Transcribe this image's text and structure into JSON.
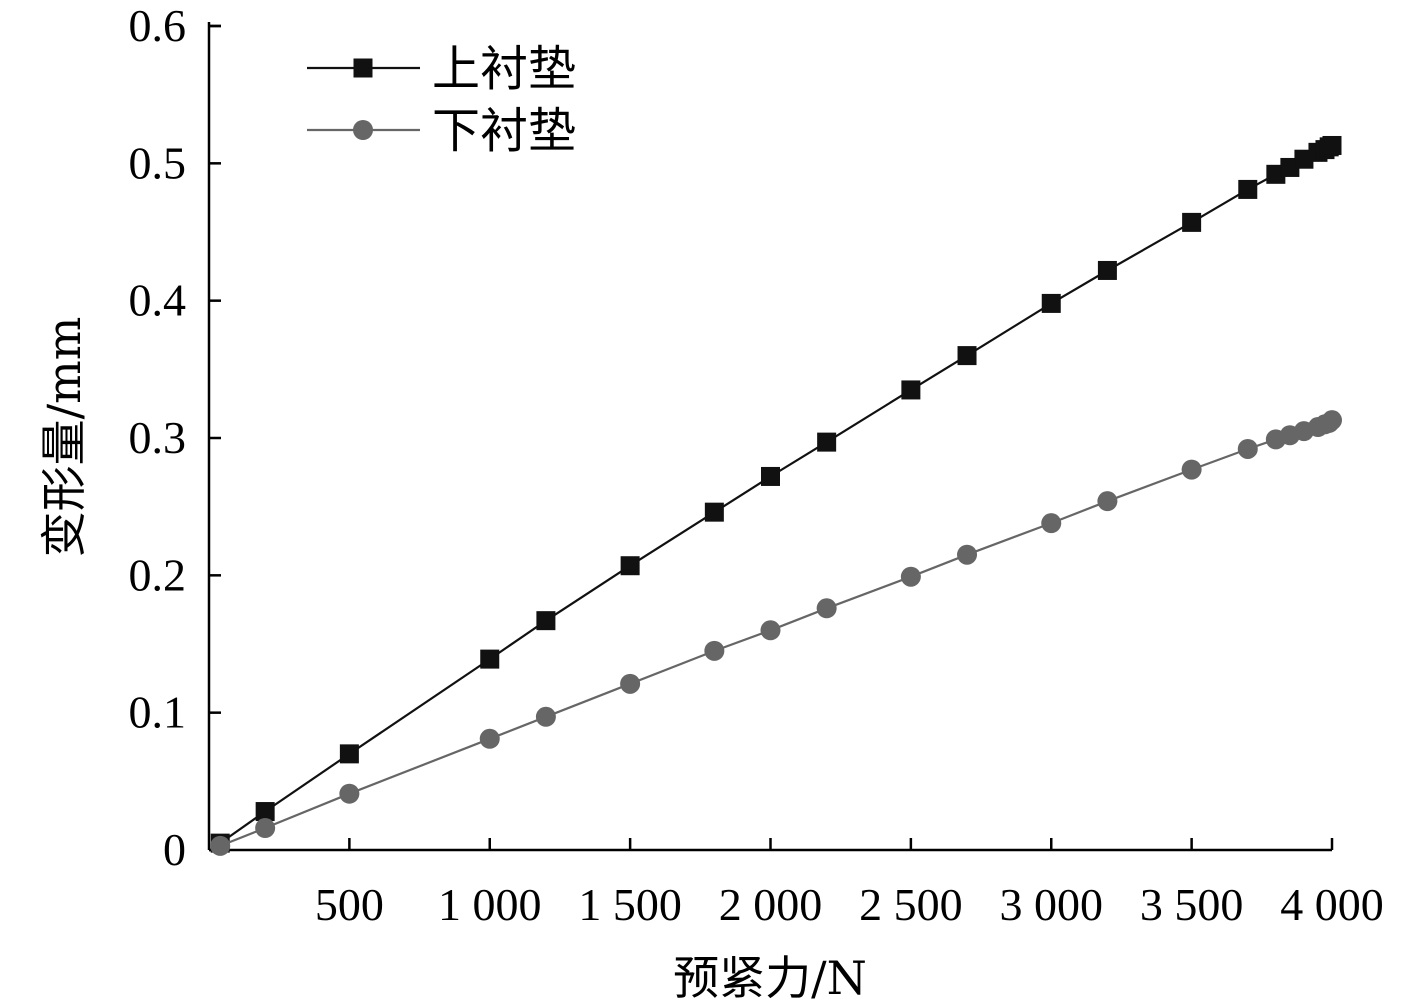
{
  "chart_data": {
    "type": "line",
    "xlabel": "预紧力/N",
    "ylabel": "变形量/mm",
    "xlim": [
      0,
      4000
    ],
    "ylim": [
      0,
      0.6
    ],
    "x_ticks": [
      500,
      1000,
      1500,
      2000,
      2500,
      3000,
      3500,
      4000
    ],
    "x_tick_labels": [
      "500",
      "1 000",
      "1 500",
      "2 000",
      "2 500",
      "3 000",
      "3 500",
      "4 000"
    ],
    "y_ticks": [
      0,
      0.1,
      0.2,
      0.3,
      0.4,
      0.5,
      0.6
    ],
    "y_tick_labels": [
      "0",
      "0.1",
      "0.2",
      "0.3",
      "0.4",
      "0.5",
      "0.6"
    ],
    "legend_position": "top-left",
    "grid": false,
    "series": [
      {
        "name": "上衬垫",
        "marker": "square",
        "color": "#111111",
        "x": [
          40,
          200,
          500,
          1000,
          1200,
          1500,
          1800,
          2000,
          2200,
          2500,
          2700,
          3000,
          3200,
          3500,
          3700,
          3800,
          3850,
          3900,
          3950,
          3975,
          3990,
          4000
        ],
        "y": [
          0.005,
          0.028,
          0.07,
          0.139,
          0.167,
          0.207,
          0.246,
          0.272,
          0.297,
          0.335,
          0.36,
          0.398,
          0.422,
          0.457,
          0.481,
          0.492,
          0.497,
          0.503,
          0.508,
          0.51,
          0.512,
          0.513
        ]
      },
      {
        "name": "下衬垫",
        "marker": "circle",
        "color": "#666666",
        "x": [
          40,
          200,
          500,
          1000,
          1200,
          1500,
          1800,
          2000,
          2200,
          2500,
          2700,
          3000,
          3200,
          3500,
          3700,
          3800,
          3850,
          3900,
          3950,
          3975,
          3990,
          4000
        ],
        "y": [
          0.003,
          0.016,
          0.041,
          0.081,
          0.097,
          0.121,
          0.145,
          0.16,
          0.176,
          0.199,
          0.215,
          0.238,
          0.254,
          0.277,
          0.292,
          0.299,
          0.302,
          0.305,
          0.308,
          0.31,
          0.311,
          0.313
        ]
      }
    ]
  }
}
